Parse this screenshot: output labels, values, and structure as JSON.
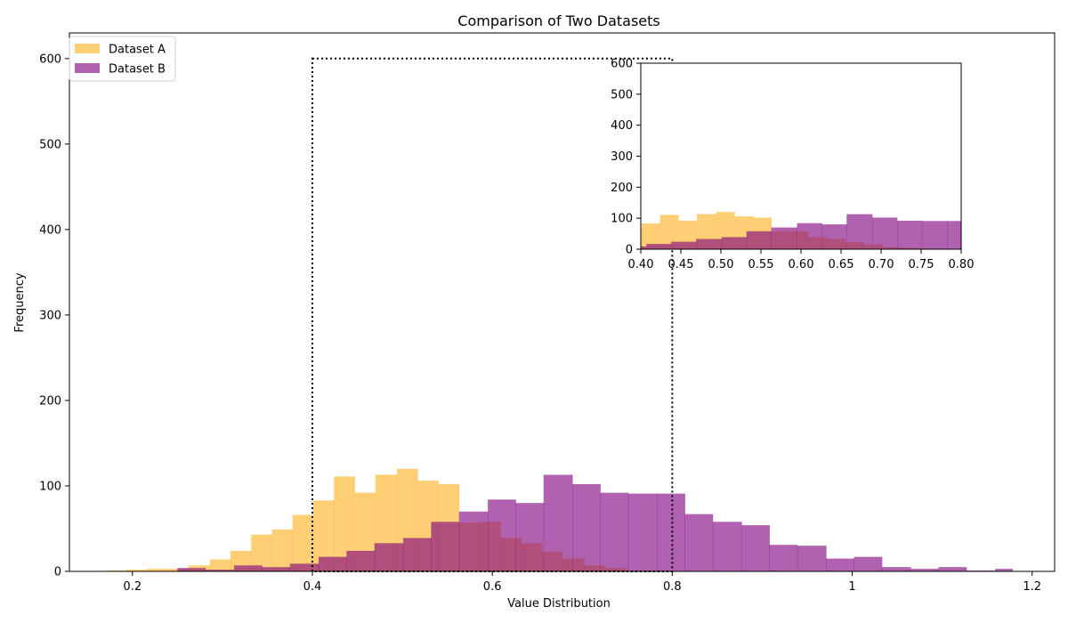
{
  "chart_data": {
    "type": "bar",
    "title": "Comparison of Two Datasets",
    "xlabel": "Value Distribution",
    "ylabel": "Frequency",
    "xlim": [
      0.13,
      1.225
    ],
    "ylim": [
      0,
      630
    ],
    "xticks": [
      0.2,
      0.4,
      0.6,
      0.8,
      1.0,
      1.2
    ],
    "yticks": [
      0,
      100,
      200,
      300,
      400,
      500,
      600
    ],
    "legend_position": "upper-left",
    "colors": {
      "dataset_a": "#ffb121",
      "dataset_b": "#800080",
      "alpha": 0.62
    },
    "series": [
      {
        "name": "Dataset A",
        "bin_edges": [
          0.17,
          0.193,
          0.216,
          0.239,
          0.262,
          0.286,
          0.309,
          0.332,
          0.355,
          0.378,
          0.401,
          0.424,
          0.447,
          0.47,
          0.494,
          0.517,
          0.54,
          0.563,
          0.586,
          0.609,
          0.632,
          0.655,
          0.678,
          0.702,
          0.725,
          0.748,
          0.771,
          0.794
        ],
        "counts": [
          1,
          2,
          3,
          3,
          7,
          14,
          24,
          43,
          49,
          66,
          83,
          111,
          92,
          113,
          120,
          106,
          102,
          57,
          58,
          39,
          33,
          23,
          15,
          7,
          4,
          1,
          1
        ]
      },
      {
        "name": "Dataset B",
        "bin_edges": [
          0.25,
          0.281,
          0.313,
          0.344,
          0.375,
          0.407,
          0.438,
          0.469,
          0.501,
          0.532,
          0.563,
          0.595,
          0.626,
          0.657,
          0.689,
          0.72,
          0.751,
          0.783,
          0.814,
          0.845,
          0.877,
          0.908,
          0.939,
          0.971,
          1.002,
          1.033,
          1.065,
          1.096,
          1.127,
          1.159,
          1.178
        ],
        "counts": [
          4,
          2,
          7,
          5,
          9,
          17,
          24,
          33,
          39,
          58,
          70,
          84,
          80,
          113,
          102,
          92,
          91,
          91,
          67,
          58,
          54,
          31,
          30,
          15,
          17,
          5,
          3,
          5,
          1,
          3
        ]
      }
    ],
    "zoom_region": {
      "x": [
        0.4,
        0.8
      ],
      "y": [
        0,
        600
      ]
    },
    "inset": {
      "xlim": [
        0.4,
        0.8
      ],
      "ylim": [
        0,
        600
      ],
      "xticks": [
        "0.40",
        "0.45",
        "0.50",
        "0.55",
        "0.60",
        "0.65",
        "0.70",
        "0.75",
        "0.80"
      ],
      "yticks": [
        0,
        100,
        200,
        300,
        400,
        500,
        600
      ]
    }
  }
}
